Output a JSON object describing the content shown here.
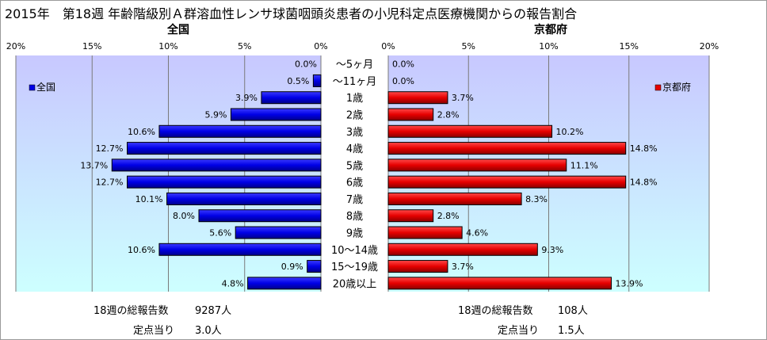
{
  "title": "2015年　第18週 年齢階級別Ａ群溶血性レンサ球菌咽頭炎患者の小児科定点医療機関からの報告割合",
  "colors": {
    "national_bar": "#0000e6",
    "kyoto_bar": "#e60000",
    "plot_bg_top": "#c8c8ff",
    "plot_bg_bottom": "#cdffff",
    "grid": "#7a7a7a"
  },
  "chart_data": [
    {
      "type": "bar",
      "orientation": "horizontal",
      "direction": "right-to-left",
      "title": "全国",
      "legend": "全国",
      "legend_position": "top-left",
      "xlim": [
        0,
        20
      ],
      "x_ticks": [
        "0%",
        "5%",
        "10%",
        "15%",
        "20%"
      ],
      "grid": true,
      "categories": [
        "～5ヶ月",
        "～11ヶ月",
        "1歳",
        "2歳",
        "3歳",
        "4歳",
        "5歳",
        "6歳",
        "7歳",
        "8歳",
        "9歳",
        "10～14歳",
        "15～19歳",
        "20歳以上"
      ],
      "values": [
        0.0,
        0.5,
        3.9,
        5.9,
        10.6,
        12.7,
        13.7,
        12.7,
        10.1,
        8.0,
        5.6,
        10.6,
        0.9,
        4.8
      ],
      "labels": [
        "0.0%",
        "0.5%",
        "3.9%",
        "5.9%",
        "10.6%",
        "12.7%",
        "13.7%",
        "12.7%",
        "10.1%",
        "8.0%",
        "5.6%",
        "10.6%",
        "0.9%",
        "4.8%"
      ]
    },
    {
      "type": "bar",
      "orientation": "horizontal",
      "direction": "left-to-right",
      "title": "京都府",
      "legend": "京都府",
      "legend_position": "top-right",
      "xlim": [
        0,
        20
      ],
      "x_ticks": [
        "0%",
        "5%",
        "10%",
        "15%",
        "20%"
      ],
      "grid": true,
      "categories": [
        "～5ヶ月",
        "～11ヶ月",
        "1歳",
        "2歳",
        "3歳",
        "4歳",
        "5歳",
        "6歳",
        "7歳",
        "8歳",
        "9歳",
        "10～14歳",
        "15～19歳",
        "20歳以上"
      ],
      "values": [
        0.0,
        0.0,
        3.7,
        2.8,
        10.2,
        14.8,
        11.1,
        14.8,
        8.3,
        2.8,
        4.6,
        9.3,
        3.7,
        13.9
      ],
      "labels": [
        "0.0%",
        "0.0%",
        "3.7%",
        "2.8%",
        "10.2%",
        "14.8%",
        "11.1%",
        "14.8%",
        "8.3%",
        "2.8%",
        "4.6%",
        "9.3%",
        "3.7%",
        "13.9%"
      ]
    }
  ],
  "stats": {
    "national": {
      "total_label": "18週の総報告数",
      "total_value": "9287人",
      "per_site_label": "定点当り",
      "per_site_value": "3.0人"
    },
    "kyoto": {
      "total_label": "18週の総報告数",
      "total_value": "108人",
      "per_site_label": "定点当り",
      "per_site_value": "1.5人"
    }
  }
}
